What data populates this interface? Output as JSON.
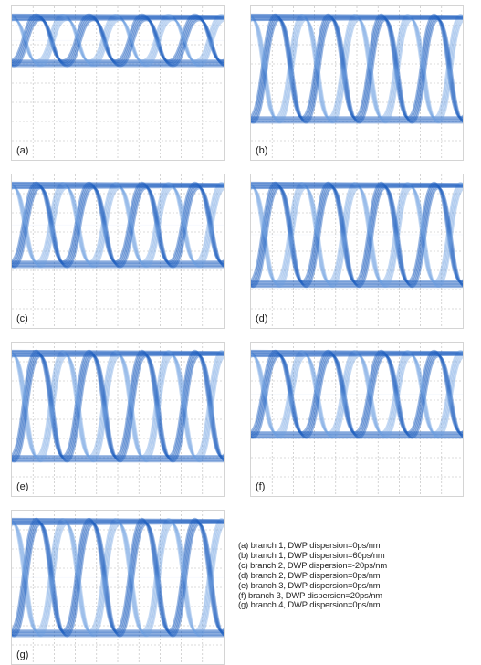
{
  "colors": {
    "trace": "#1f5fbf",
    "trace_light": "#6f9fe0",
    "grid": "#b8b8b8",
    "background": "#ffffff"
  },
  "chart_data": [
    {
      "type": "eye-diagram",
      "label": "(a)",
      "eye_openness": 0.35,
      "periods": 4,
      "grid": true
    },
    {
      "type": "eye-diagram",
      "label": "(b)",
      "eye_openness": 0.78,
      "periods": 4,
      "grid": true
    },
    {
      "type": "eye-diagram",
      "label": "(c)",
      "eye_openness": 0.6,
      "periods": 4,
      "grid": true
    },
    {
      "type": "eye-diagram",
      "label": "(d)",
      "eye_openness": 0.75,
      "periods": 4,
      "grid": true
    },
    {
      "type": "eye-diagram",
      "label": "(e)",
      "eye_openness": 0.8,
      "periods": 4,
      "grid": true
    },
    {
      "type": "eye-diagram",
      "label": "(f)",
      "eye_openness": 0.62,
      "periods": 4,
      "grid": true
    },
    {
      "type": "eye-diagram",
      "label": "(g)",
      "eye_openness": 0.85,
      "periods": 4,
      "grid": true
    }
  ],
  "legend": [
    "(a) branch 1, DWP dispersion=0ps/nm",
    "(b) branch 1, DWP dispersion=60ps/nm",
    "(c) branch 2, DWP dispersion=-20ps/nm",
    "(d) branch 2, DWP dispersion=0ps/nm",
    "(e) branch 3, DWP dispersion=0ps/nm",
    "(f) branch 3, DWP dispersion=20ps/nm",
    "(g) branch 4, DWP dispersion=0ps/nm"
  ]
}
